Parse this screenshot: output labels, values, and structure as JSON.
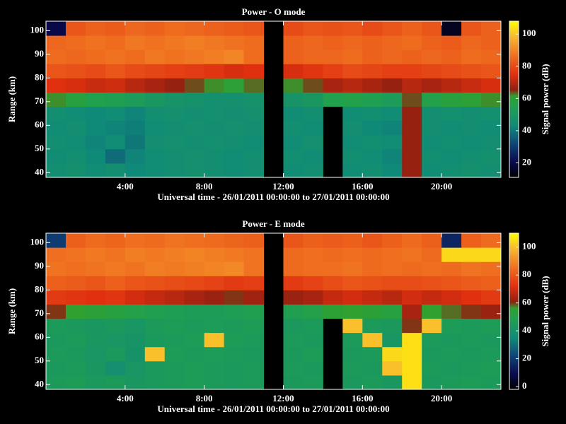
{
  "chart_data": [
    {
      "type": "heatmap",
      "title": "Power - O mode",
      "xlabel": "Universal time - 26/01/2011 00:00:00 to 27/01/2011 00:00:00",
      "ylabel": "Range (km)",
      "colorbar_label": "Signal power (dB)",
      "x": [
        0,
        1,
        2,
        3,
        4,
        5,
        6,
        7,
        8,
        9,
        10,
        11,
        12,
        13,
        14,
        15,
        16,
        17,
        18,
        19,
        20,
        21,
        22
      ],
      "y": [
        41,
        47,
        53,
        59,
        65,
        71,
        77,
        83,
        89,
        95,
        101
      ],
      "xlim": [
        0,
        23
      ],
      "ylim": [
        38,
        104
      ],
      "xticks": [
        {
          "value": 4,
          "label": "4:00"
        },
        {
          "value": 8,
          "label": "8:00"
        },
        {
          "value": 12,
          "label": "12:00"
        },
        {
          "value": 16,
          "label": "16:00"
        },
        {
          "value": 20,
          "label": "20:00"
        }
      ],
      "yticks": [
        40,
        50,
        60,
        70,
        80,
        90,
        100
      ],
      "clim": [
        11,
        108
      ],
      "cticks": [
        20,
        40,
        60,
        80,
        100
      ],
      "colorscale": [
        [
          0,
          "#000000"
        ],
        [
          0.1,
          "#0a0a50"
        ],
        [
          0.22,
          "#104878"
        ],
        [
          0.33,
          "#108a78"
        ],
        [
          0.45,
          "#20a050"
        ],
        [
          0.52,
          "#30a030"
        ],
        [
          0.56,
          "#902010"
        ],
        [
          0.66,
          "#e03010"
        ],
        [
          0.78,
          "#f07020"
        ],
        [
          0.9,
          "#f8b830"
        ],
        [
          1,
          "#ffff00"
        ]
      ],
      "z": [
        [
          45,
          46,
          44,
          45,
          43,
          44,
          45,
          46,
          45,
          44,
          45,
          null,
          44,
          45,
          null,
          44,
          45,
          43,
          66,
          44,
          45,
          46,
          45
        ],
        [
          44,
          45,
          43,
          38,
          42,
          44,
          45,
          46,
          45,
          44,
          45,
          null,
          45,
          44,
          null,
          45,
          44,
          42,
          66,
          45,
          44,
          45,
          46
        ],
        [
          45,
          44,
          42,
          44,
          40,
          45,
          46,
          45,
          46,
          45,
          44,
          null,
          44,
          46,
          null,
          44,
          45,
          44,
          66,
          44,
          45,
          44,
          45
        ],
        [
          44,
          45,
          43,
          42,
          41,
          44,
          45,
          46,
          45,
          46,
          45,
          null,
          45,
          44,
          null,
          45,
          43,
          42,
          66,
          45,
          44,
          45,
          44
        ],
        [
          45,
          44,
          43,
          44,
          42,
          45,
          46,
          45,
          46,
          45,
          46,
          null,
          44,
          45,
          null,
          44,
          45,
          44,
          66,
          45,
          46,
          45,
          46
        ],
        [
          62,
          58,
          55,
          54,
          52,
          50,
          48,
          47,
          46,
          46,
          47,
          null,
          48,
          50,
          55,
          56,
          54,
          52,
          64,
          56,
          58,
          60,
          62
        ],
        [
          75,
          74,
          72,
          73,
          70,
          68,
          66,
          64,
          62,
          60,
          63,
          null,
          62,
          64,
          68,
          70,
          68,
          66,
          70,
          68,
          70,
          72,
          74
        ],
        [
          82,
          81,
          80,
          82,
          80,
          79,
          78,
          77,
          76,
          74,
          75,
          null,
          74,
          76,
          78,
          80,
          79,
          78,
          78,
          79,
          80,
          81,
          82
        ],
        [
          86,
          85,
          86,
          87,
          86,
          88,
          87,
          88,
          89,
          90,
          86,
          null,
          84,
          85,
          85,
          86,
          84,
          85,
          84,
          85,
          84,
          86,
          85
        ],
        [
          85,
          86,
          87,
          86,
          88,
          87,
          88,
          89,
          88,
          87,
          86,
          null,
          84,
          85,
          84,
          85,
          84,
          85,
          86,
          84,
          83,
          85,
          84
        ],
        [
          20,
          82,
          84,
          83,
          85,
          84,
          86,
          85,
          84,
          83,
          82,
          null,
          80,
          82,
          81,
          82,
          80,
          82,
          84,
          82,
          15,
          82,
          84
        ]
      ]
    },
    {
      "type": "heatmap",
      "title": "Power - E mode",
      "xlabel": "Universal time - 26/01/2011 00:00:00 to 27/01/2011 00:00:00",
      "ylabel": "Range (km)",
      "colorbar_label": "Signal power (dB)",
      "x": [
        0,
        1,
        2,
        3,
        4,
        5,
        6,
        7,
        8,
        9,
        10,
        11,
        12,
        13,
        14,
        15,
        16,
        17,
        18,
        19,
        20,
        21,
        22
      ],
      "y": [
        41,
        47,
        53,
        59,
        65,
        71,
        77,
        83,
        89,
        95,
        101
      ],
      "xlim": [
        0,
        23
      ],
      "ylim": [
        38,
        104
      ],
      "xticks": [
        {
          "value": 4,
          "label": "4:00"
        },
        {
          "value": 8,
          "label": "8:00"
        },
        {
          "value": 12,
          "label": "12:00"
        },
        {
          "value": 16,
          "label": "16:00"
        },
        {
          "value": 20,
          "label": "20:00"
        }
      ],
      "yticks": [
        40,
        50,
        60,
        70,
        80,
        90,
        100
      ],
      "clim": [
        -2,
        110
      ],
      "cticks": [
        0,
        20,
        40,
        60,
        80,
        100
      ],
      "colorscale": [
        [
          0,
          "#000000"
        ],
        [
          0.1,
          "#0a0a50"
        ],
        [
          0.22,
          "#104878"
        ],
        [
          0.33,
          "#108a78"
        ],
        [
          0.45,
          "#20a050"
        ],
        [
          0.52,
          "#30a030"
        ],
        [
          0.56,
          "#902010"
        ],
        [
          0.66,
          "#e03010"
        ],
        [
          0.78,
          "#f07020"
        ],
        [
          0.9,
          "#f8b830"
        ],
        [
          1,
          "#ffff00"
        ]
      ],
      "z": [
        [
          45,
          46,
          44,
          45,
          43,
          44,
          45,
          46,
          45,
          44,
          45,
          null,
          44,
          45,
          null,
          44,
          45,
          43,
          105,
          44,
          45,
          46,
          45
        ],
        [
          44,
          45,
          43,
          38,
          42,
          44,
          45,
          46,
          45,
          44,
          45,
          null,
          45,
          44,
          null,
          45,
          44,
          100,
          105,
          45,
          44,
          45,
          46
        ],
        [
          45,
          44,
          42,
          44,
          40,
          100,
          46,
          45,
          46,
          45,
          44,
          null,
          44,
          46,
          null,
          44,
          45,
          104,
          105,
          44,
          45,
          44,
          45
        ],
        [
          44,
          45,
          43,
          42,
          41,
          44,
          45,
          46,
          100,
          46,
          45,
          null,
          45,
          44,
          null,
          45,
          100,
          42,
          105,
          45,
          44,
          45,
          44
        ],
        [
          45,
          44,
          43,
          44,
          42,
          45,
          46,
          45,
          46,
          45,
          46,
          null,
          44,
          45,
          null,
          100,
          45,
          44,
          60,
          100,
          46,
          45,
          46
        ],
        [
          60,
          56,
          54,
          52,
          50,
          48,
          47,
          46,
          46,
          47,
          48,
          null,
          48,
          50,
          55,
          56,
          54,
          52,
          64,
          56,
          58,
          60,
          62
        ],
        [
          74,
          73,
          72,
          73,
          70,
          68,
          66,
          64,
          62,
          60,
          63,
          null,
          62,
          64,
          68,
          70,
          68,
          66,
          70,
          68,
          70,
          72,
          74
        ],
        [
          82,
          81,
          80,
          82,
          80,
          79,
          78,
          77,
          76,
          74,
          75,
          null,
          74,
          76,
          78,
          80,
          79,
          78,
          78,
          79,
          80,
          81,
          82
        ],
        [
          86,
          85,
          86,
          87,
          86,
          88,
          87,
          88,
          89,
          90,
          86,
          null,
          84,
          85,
          85,
          86,
          84,
          85,
          84,
          85,
          84,
          86,
          85
        ],
        [
          85,
          86,
          87,
          86,
          88,
          87,
          88,
          89,
          88,
          87,
          86,
          null,
          84,
          85,
          84,
          85,
          84,
          85,
          86,
          84,
          104,
          104,
          104
        ],
        [
          20,
          82,
          84,
          83,
          85,
          84,
          86,
          85,
          84,
          83,
          82,
          null,
          80,
          82,
          81,
          82,
          80,
          82,
          84,
          82,
          15,
          82,
          84
        ]
      ]
    }
  ]
}
